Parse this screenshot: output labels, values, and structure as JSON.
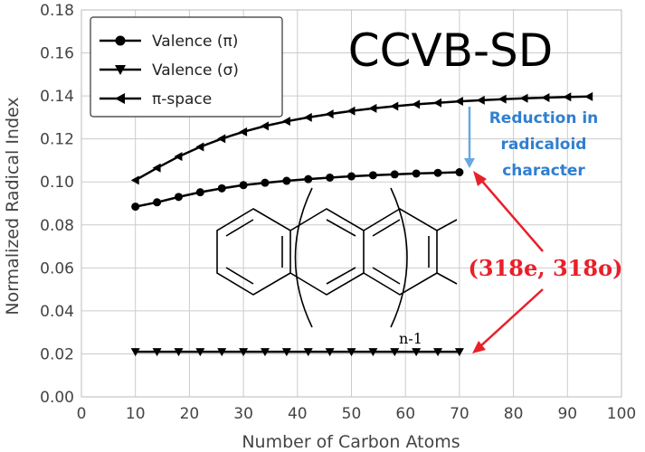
{
  "chart_data": {
    "type": "line",
    "xlabel": "Number of Carbon Atoms",
    "ylabel": "Normalized Radical Index",
    "xlim": [
      0,
      100
    ],
    "ylim": [
      0,
      0.18
    ],
    "xticks": [
      "0",
      "10",
      "20",
      "30",
      "40",
      "50",
      "60",
      "70",
      "80",
      "90",
      "100"
    ],
    "yticks": [
      "0.00",
      "0.02",
      "0.04",
      "0.06",
      "0.08",
      "0.10",
      "0.12",
      "0.14",
      "0.16",
      "0.18"
    ],
    "grid": true,
    "legend_position": "top-left",
    "series": [
      {
        "name": "Valence (π)",
        "marker": "circle",
        "x": [
          10,
          14,
          18,
          22,
          26,
          30,
          34,
          38,
          42,
          46,
          50,
          54,
          58,
          62,
          66,
          70
        ],
        "y": [
          0.0885,
          0.0905,
          0.093,
          0.0952,
          0.097,
          0.0985,
          0.0996,
          0.1005,
          0.1013,
          0.102,
          0.1026,
          0.1031,
          0.1035,
          0.1039,
          0.1042,
          0.1045
        ]
      },
      {
        "name": "Valence (σ)",
        "marker": "triangle-down",
        "x": [
          10,
          14,
          18,
          22,
          26,
          30,
          34,
          38,
          42,
          46,
          50,
          54,
          58,
          62,
          66,
          70
        ],
        "y": [
          0.021,
          0.021,
          0.021,
          0.021,
          0.021,
          0.021,
          0.021,
          0.021,
          0.021,
          0.021,
          0.021,
          0.021,
          0.021,
          0.021,
          0.021,
          0.021
        ]
      },
      {
        "name": "π-space",
        "marker": "triangle-left",
        "x": [
          10,
          14,
          18,
          22,
          26,
          30,
          34,
          38,
          42,
          46,
          50,
          54,
          58,
          62,
          66,
          70,
          74,
          78,
          82,
          86,
          90,
          94
        ],
        "y": [
          0.1008,
          0.1065,
          0.1118,
          0.1163,
          0.1201,
          0.1233,
          0.126,
          0.1282,
          0.13,
          0.1316,
          0.133,
          0.1342,
          0.1352,
          0.1361,
          0.1368,
          0.1375,
          0.138,
          0.1385,
          0.1389,
          0.1392,
          0.1395,
          0.1397
        ]
      }
    ],
    "annotations": {
      "method": "CCVB-SD",
      "reduction_lines": [
        "Reduction in",
        "radicaloid",
        "character"
      ],
      "active_space": "(318e, 318o)",
      "repeat_subscript": "n-1"
    },
    "colors": {
      "series": "#000000",
      "reduction": "#2f7fd0",
      "active_space": "#e8202a",
      "grid": "#cccccc"
    }
  }
}
